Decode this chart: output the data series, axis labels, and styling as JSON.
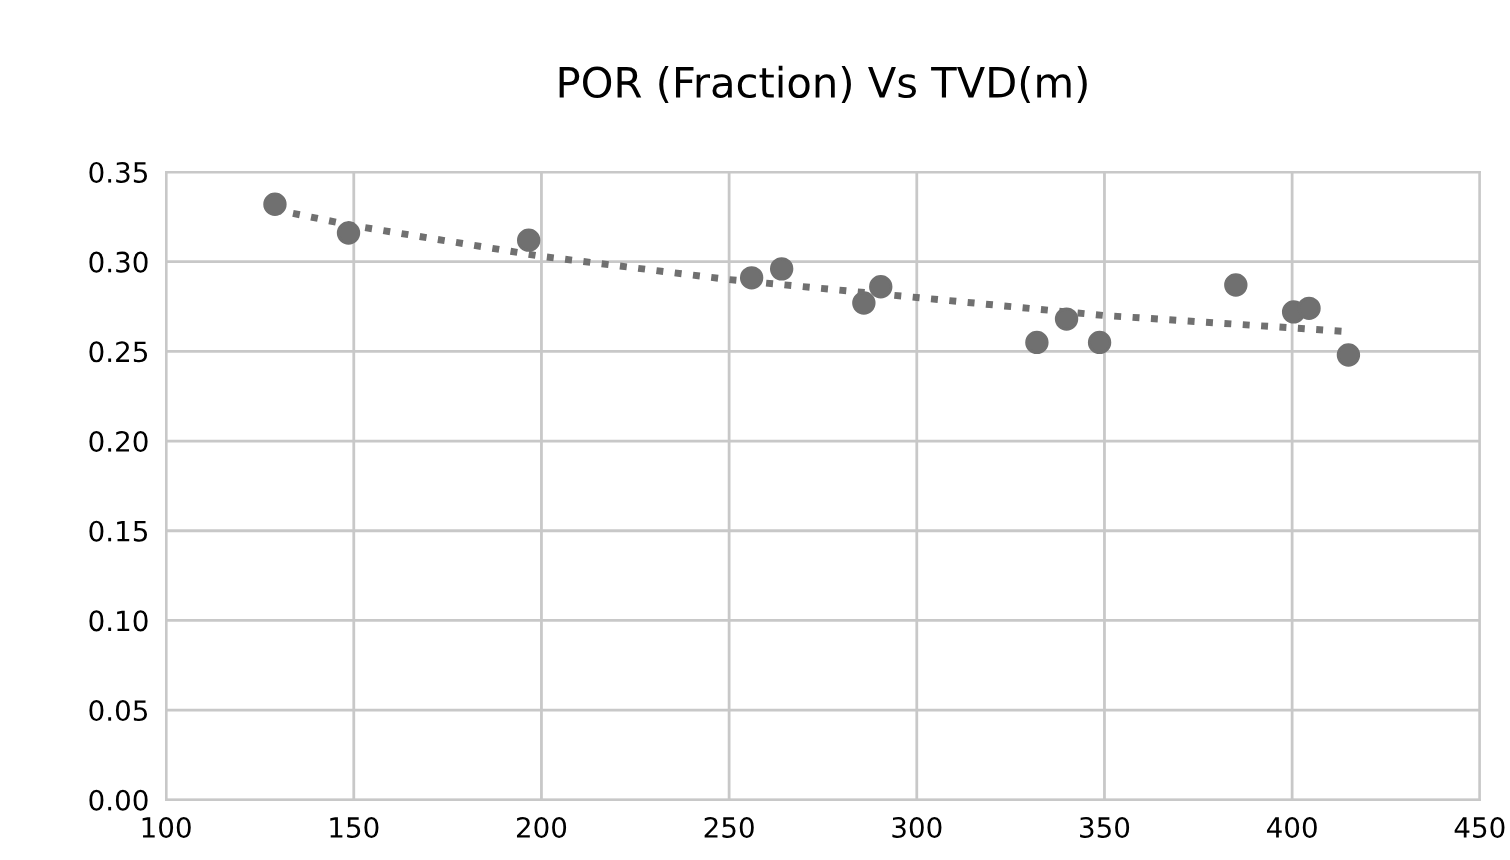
{
  "chart_data": {
    "type": "scatter",
    "title": "POR (Fraction) Vs TVD(m)",
    "series": [
      {
        "color": "#707070",
        "marker": "circle",
        "x": [
          129,
          148.6,
          196.6,
          256,
          264,
          285.9,
          290.4,
          332,
          339.9,
          348.7,
          385,
          400.4,
          404.5,
          415
        ],
        "values": [
          0.332,
          0.316,
          0.312,
          0.291,
          0.296,
          0.277,
          0.286,
          0.255,
          0.268,
          0.255,
          0.287,
          0.272,
          0.274,
          0.248
        ]
      },
      {
        "type": "line",
        "color": "#707070",
        "line_style": "dotted",
        "marker": "none",
        "x": [
          129,
          150,
          200,
          250,
          300,
          350,
          415
        ],
        "values": [
          0.329,
          0.32,
          0.303,
          0.29,
          0.28,
          0.27,
          0.261
        ]
      }
    ],
    "xlim": [
      100,
      450
    ],
    "xticks": [
      100,
      150,
      200,
      250,
      300,
      350,
      400,
      450
    ],
    "ylim": [
      0,
      0.35
    ],
    "yticks": [
      {
        "value": 0,
        "label": "0.00"
      },
      {
        "value": 0.05,
        "label": "0.05"
      },
      {
        "value": 0.1,
        "label": "0.10"
      },
      {
        "value": 0.15,
        "label": "0.15"
      },
      {
        "value": 0.2,
        "label": "0.20"
      },
      {
        "value": 0.25,
        "label": "0.25"
      },
      {
        "value": 0.3,
        "label": "0.30"
      },
      {
        "value": 0.35,
        "label": "0.35"
      }
    ],
    "grid": true
  }
}
